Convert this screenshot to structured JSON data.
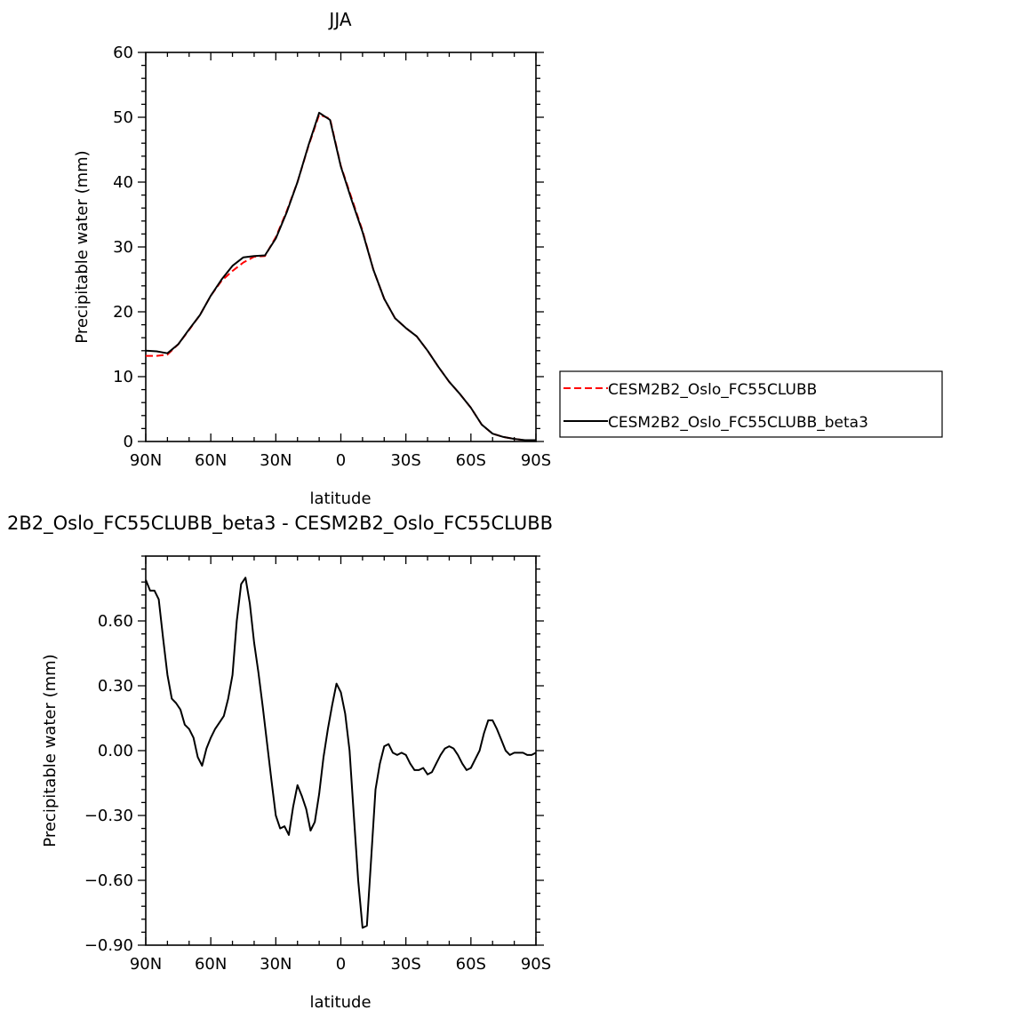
{
  "chart_data": [
    {
      "type": "line",
      "title": "JJA",
      "xlabel": "latitude",
      "ylabel": "Precipitable water (mm)",
      "xlim": [
        90,
        -90
      ],
      "ylim": [
        0,
        60
      ],
      "x_ticks": [
        90,
        60,
        30,
        0,
        -30,
        -60,
        -90
      ],
      "x_tick_labels": [
        "90N",
        "60N",
        "30N",
        "0",
        "30S",
        "60S",
        "90S"
      ],
      "y_ticks": [
        0,
        10,
        20,
        30,
        40,
        50,
        60
      ],
      "y_tick_labels": [
        "0",
        "10",
        "20",
        "30",
        "40",
        "50",
        "60"
      ],
      "legend_position": "right, outside plot",
      "series": [
        {
          "name": "CESM2B2_Oslo_FC55CLUBB",
          "color": "#ff0000",
          "dash": "dashed",
          "x": [
            90,
            85,
            80,
            75,
            70,
            65,
            60,
            55,
            50,
            45,
            40,
            35,
            30,
            25,
            20,
            15,
            10,
            5,
            0,
            -5,
            -10,
            -15,
            -20,
            -25,
            -30,
            -35,
            -40,
            -45,
            -50,
            -55,
            -60,
            -65,
            -70,
            -75,
            -80,
            -85,
            -90
          ],
          "values": [
            13.2,
            13.2,
            13.4,
            15,
            17.2,
            19.5,
            22.5,
            24.8,
            26.3,
            27.6,
            28.5,
            28.6,
            31.5,
            35.5,
            40,
            45.5,
            50.4,
            49.8,
            42.5,
            37.5,
            32.5,
            26.5,
            22,
            19,
            17.5,
            16.2,
            14,
            11.5,
            9.2,
            7.3,
            5.2,
            2.6,
            1.2,
            0.7,
            0.4,
            0.2,
            0.2
          ]
        },
        {
          "name": "CESM2B2_Oslo_FC55CLUBB_beta3",
          "color": "#000000",
          "dash": "solid",
          "x": [
            90,
            85,
            80,
            75,
            70,
            65,
            60,
            55,
            50,
            45,
            40,
            35,
            30,
            25,
            20,
            15,
            10,
            5,
            0,
            -5,
            -10,
            -15,
            -20,
            -25,
            -30,
            -35,
            -40,
            -45,
            -50,
            -55,
            -60,
            -65,
            -70,
            -75,
            -80,
            -85,
            -90
          ],
          "values": [
            14,
            13.9,
            13.6,
            15,
            17.3,
            19.5,
            22.5,
            25,
            27.1,
            28.4,
            28.6,
            28.7,
            31.3,
            35.3,
            40,
            45.6,
            50.7,
            49.6,
            42.4,
            37.2,
            32.3,
            26.5,
            22,
            19,
            17.5,
            16.2,
            14,
            11.5,
            9.2,
            7.3,
            5.2,
            2.6,
            1.2,
            0.7,
            0.4,
            0.2,
            0.2
          ]
        }
      ]
    },
    {
      "type": "line",
      "title": "2B2_Oslo_FC55CLUBB_beta3 - CESM2B2_Oslo_FC55CLUBB",
      "xlabel": "latitude",
      "ylabel": "Precipitable water (mm)",
      "xlim": [
        90,
        -90
      ],
      "ylim": [
        -0.9,
        0.9
      ],
      "x_ticks": [
        90,
        60,
        30,
        0,
        -30,
        -60,
        -90
      ],
      "x_tick_labels": [
        "90N",
        "60N",
        "30N",
        "0",
        "30S",
        "60S",
        "90S"
      ],
      "y_ticks": [
        -0.9,
        -0.6,
        -0.3,
        0,
        0.3,
        0.6
      ],
      "y_tick_labels": [
        "-0.90",
        "-0.60",
        "-0.30",
        "0.00",
        "0.30",
        "0.60"
      ],
      "series": [
        {
          "name": "",
          "color": "#000000",
          "dash": "solid",
          "x": [
            90,
            88,
            86,
            84,
            82,
            80,
            78,
            76,
            74,
            72,
            70,
            68,
            66,
            64,
            62,
            60,
            58,
            56,
            54,
            52,
            50,
            48,
            46,
            44,
            42,
            40,
            38,
            36,
            34,
            32,
            30,
            28,
            26,
            24,
            22,
            20,
            18,
            16,
            14,
            12,
            10,
            8,
            6,
            4,
            2,
            0,
            -2,
            -4,
            -6,
            -8,
            -10,
            -12,
            -14,
            -16,
            -18,
            -20,
            -22,
            -24,
            -26,
            -28,
            -30,
            -32,
            -34,
            -36,
            -38,
            -40,
            -42,
            -44,
            -46,
            -48,
            -50,
            -52,
            -54,
            -56,
            -58,
            -60,
            -62,
            -64,
            -66,
            -68,
            -70,
            -72,
            -74,
            -76,
            -78,
            -80,
            -82,
            -84,
            -86,
            -88,
            -90
          ],
          "values": [
            0.79,
            0.74,
            0.74,
            0.7,
            0.52,
            0.35,
            0.24,
            0.22,
            0.19,
            0.12,
            0.1,
            0.06,
            -0.03,
            -0.07,
            0.01,
            0.06,
            0.1,
            0.13,
            0.16,
            0.24,
            0.35,
            0.6,
            0.77,
            0.8,
            0.68,
            0.5,
            0.36,
            0.2,
            0.03,
            -0.14,
            -0.3,
            -0.36,
            -0.35,
            -0.39,
            -0.26,
            -0.16,
            -0.21,
            -0.27,
            -0.37,
            -0.33,
            -0.2,
            -0.03,
            0.1,
            0.21,
            0.31,
            0.27,
            0.17,
            0.0,
            -0.3,
            -0.6,
            -0.82,
            -0.81,
            -0.5,
            -0.18,
            -0.06,
            0.02,
            0.03,
            -0.01,
            -0.02,
            -0.01,
            -0.02,
            -0.06,
            -0.09,
            -0.09,
            -0.08,
            -0.11,
            -0.1,
            -0.06,
            -0.02,
            0.01,
            0.02,
            0.01,
            -0.02,
            -0.06,
            -0.09,
            -0.08,
            -0.04,
            0.0,
            0.08,
            0.14,
            0.14,
            0.1,
            0.05,
            0.0,
            -0.02,
            -0.01,
            -0.01,
            -0.01,
            -0.02,
            -0.02,
            -0.01
          ]
        }
      ]
    }
  ]
}
